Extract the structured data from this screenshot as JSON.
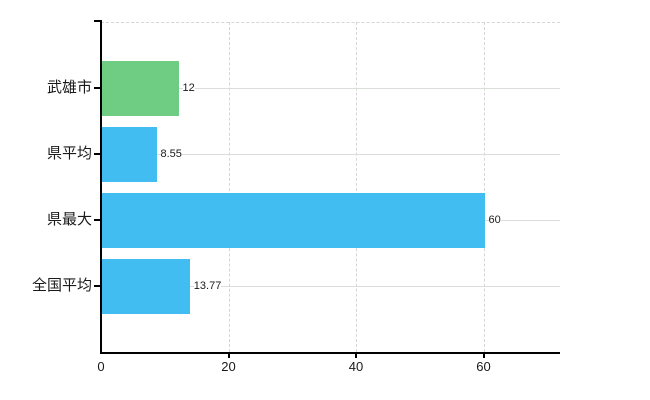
{
  "chart_data": {
    "type": "bar",
    "orientation": "horizontal",
    "title": "",
    "xlabel": "",
    "ylabel": "",
    "categories": [
      "武雄市",
      "県平均",
      "県最大",
      "全国平均"
    ],
    "values": [
      12,
      8.55,
      60,
      13.77
    ],
    "value_labels": [
      "12",
      "8.55",
      "60",
      "13.77"
    ],
    "bar_colors": [
      "#6FCD83",
      "#42BDF2",
      "#42BDF2",
      "#42BDF2"
    ],
    "x_tick_values": [
      0,
      20,
      40,
      60
    ],
    "x_tick_labels": [
      "0",
      "20",
      "40",
      "60"
    ],
    "xlim": [
      0,
      72
    ],
    "grid": true,
    "legend": false,
    "background_color": "#FFFFFF",
    "axis_color": "#000000",
    "gridline_color": "#D9DED9"
  }
}
